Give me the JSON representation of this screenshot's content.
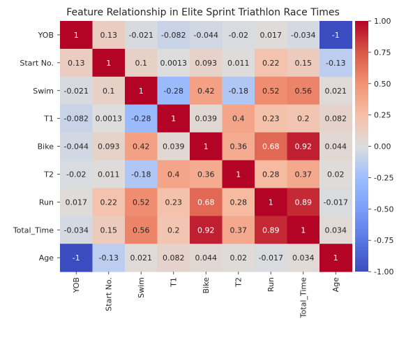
{
  "chart_data": {
    "type": "heatmap",
    "title": "Feature Relationship in Elite Sprint Triathlon Race Times",
    "labels": [
      "YOB",
      "Start No.",
      "Swim",
      "T1",
      "Bike",
      "T2",
      "Run",
      "Total_Time",
      "Age"
    ],
    "values": [
      [
        "1",
        "0.13",
        "-0.021",
        "-0.082",
        "-0.044",
        "-0.02",
        "0.017",
        "-0.034",
        "-1"
      ],
      [
        "0.13",
        "1",
        "0.1",
        "0.0013",
        "0.093",
        "0.011",
        "0.22",
        "0.15",
        "-0.13"
      ],
      [
        "-0.021",
        "0.1",
        "1",
        "-0.28",
        "0.42",
        "-0.18",
        "0.52",
        "0.56",
        "0.021"
      ],
      [
        "-0.082",
        "0.0013",
        "-0.28",
        "1",
        "0.039",
        "0.4",
        "0.23",
        "0.2",
        "0.082"
      ],
      [
        "-0.044",
        "0.093",
        "0.42",
        "0.039",
        "1",
        "0.36",
        "0.68",
        "0.92",
        "0.044"
      ],
      [
        "-0.02",
        "0.011",
        "-0.18",
        "0.4",
        "0.36",
        "1",
        "0.28",
        "0.37",
        "0.02"
      ],
      [
        "0.017",
        "0.22",
        "0.52",
        "0.23",
        "0.68",
        "0.28",
        "1",
        "0.89",
        "-0.017"
      ],
      [
        "-0.034",
        "0.15",
        "0.56",
        "0.2",
        "0.92",
        "0.37",
        "0.89",
        "1",
        "0.034"
      ],
      [
        "-1",
        "-0.13",
        "0.021",
        "0.082",
        "0.044",
        "0.02",
        "-0.017",
        "0.034",
        "1"
      ]
    ],
    "vmin": -1,
    "vmax": 1,
    "colormap": "coolwarm",
    "colorbar_ticks": [
      "1.00",
      "0.75",
      "0.50",
      "0.25",
      "0.00",
      "-0.25",
      "-0.50",
      "-0.75",
      "-1.00"
    ],
    "annotations": true,
    "colors": {
      "low": "#3b4cc0",
      "mid": "#dddddd",
      "high": "#b40426",
      "text_dark": "#262626",
      "text_light": "#ffffff"
    }
  }
}
